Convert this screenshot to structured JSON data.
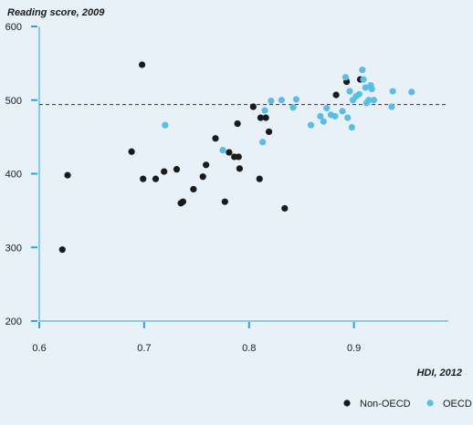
{
  "chart_data": {
    "type": "scatter",
    "ylabel": "Reading score, 2009",
    "xlabel": "HDI, 2012",
    "xlim": [
      0.6,
      0.99
    ],
    "ylim": [
      200,
      600
    ],
    "x_ticks": [
      "0.6",
      "0.7",
      "0.8",
      "0.9"
    ],
    "y_ticks": [
      "200",
      "300",
      "400",
      "500",
      "600"
    ],
    "reference_line": {
      "y": 494,
      "style": "dashed"
    },
    "grid": false,
    "legend_position": "bottom-right",
    "colors": {
      "non_oecd": "#1a1a1a",
      "oecd": "#5bbde4",
      "axis": "#2ea3db",
      "background": "#e9f1f8"
    },
    "series": [
      {
        "name": "Non-OECD",
        "color": "#1a1a1a",
        "points": [
          [
            0.622,
            297
          ],
          [
            0.627,
            398
          ],
          [
            0.688,
            430
          ],
          [
            0.698,
            548
          ],
          [
            0.699,
            393
          ],
          [
            0.711,
            393
          ],
          [
            0.719,
            403
          ],
          [
            0.731,
            406
          ],
          [
            0.735,
            360
          ],
          [
            0.737,
            362
          ],
          [
            0.747,
            379
          ],
          [
            0.756,
            396
          ],
          [
            0.759,
            412
          ],
          [
            0.768,
            448
          ],
          [
            0.777,
            362
          ],
          [
            0.781,
            429
          ],
          [
            0.786,
            423
          ],
          [
            0.789,
            468
          ],
          [
            0.79,
            423
          ],
          [
            0.791,
            407
          ],
          [
            0.804,
            491
          ],
          [
            0.81,
            393
          ],
          [
            0.811,
            476
          ],
          [
            0.816,
            476
          ],
          [
            0.819,
            457
          ],
          [
            0.834,
            353
          ],
          [
            0.883,
            507
          ],
          [
            0.893,
            525
          ],
          [
            0.906,
            528
          ]
        ]
      },
      {
        "name": "OECD",
        "color": "#5bbde4",
        "points": [
          [
            0.72,
            466
          ],
          [
            0.775,
            432
          ],
          [
            0.813,
            443
          ],
          [
            0.815,
            486
          ],
          [
            0.821,
            499
          ],
          [
            0.831,
            500
          ],
          [
            0.842,
            490
          ],
          [
            0.845,
            501
          ],
          [
            0.859,
            466
          ],
          [
            0.868,
            478
          ],
          [
            0.871,
            471
          ],
          [
            0.874,
            489
          ],
          [
            0.878,
            480
          ],
          [
            0.882,
            478
          ],
          [
            0.889,
            485
          ],
          [
            0.892,
            531
          ],
          [
            0.894,
            476
          ],
          [
            0.896,
            512
          ],
          [
            0.898,
            463
          ],
          [
            0.899,
            500
          ],
          [
            0.902,
            505
          ],
          [
            0.905,
            508
          ],
          [
            0.908,
            541
          ],
          [
            0.909,
            528
          ],
          [
            0.911,
            517
          ],
          [
            0.912,
            496
          ],
          [
            0.914,
            500
          ],
          [
            0.916,
            520
          ],
          [
            0.917,
            515
          ],
          [
            0.919,
            500
          ],
          [
            0.936,
            491
          ],
          [
            0.937,
            512
          ],
          [
            0.955,
            511
          ]
        ]
      }
    ]
  }
}
